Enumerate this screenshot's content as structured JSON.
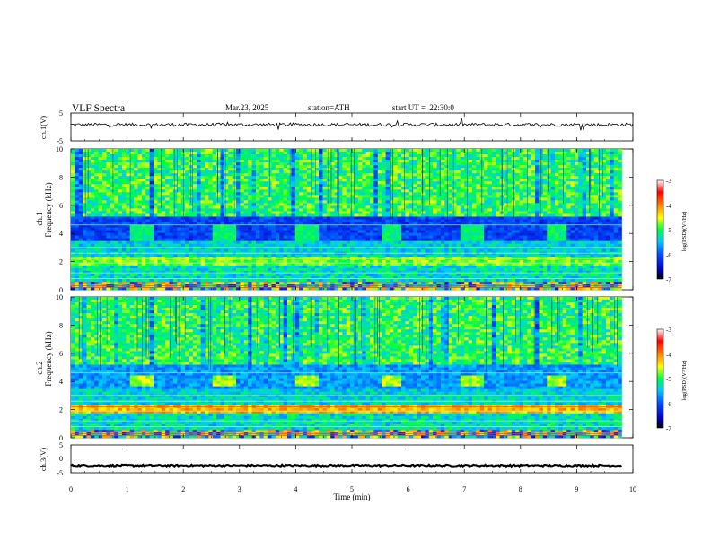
{
  "header": {
    "title": "VLF Spectra",
    "date": "Mar.23, 2025",
    "station": "station=ATH",
    "start": "start UT =  22:30:0"
  },
  "chart_data": [
    {
      "type": "line",
      "panel": "ch1-waveform",
      "ylabel": "ch.1(V)",
      "ylim": [
        -5,
        5
      ],
      "y_ticks": [
        "5",
        "-5"
      ],
      "x_range": [
        0,
        10
      ],
      "mean_value": 0.8,
      "noise_amplitude": 0.6
    },
    {
      "type": "heatmap",
      "panel": "ch1-spectrogram",
      "ylabel": "ch.1\nFrequency (kHz)",
      "ylim": [
        0,
        10
      ],
      "y_ticks": [
        "0",
        "2",
        "4",
        "6",
        "8",
        "10"
      ],
      "x_range": [
        0,
        9.8
      ],
      "colorbar": {
        "label": "log(PSD)(V²/Hz)",
        "range": [
          -7,
          -3
        ],
        "ticks": [
          "-3",
          "-4",
          "-5",
          "-6",
          "-7"
        ],
        "colors": [
          "#000080",
          "#0000ff",
          "#00a0ff",
          "#00ffff",
          "#00ff40",
          "#ffff00",
          "#ff8000",
          "#ff0000",
          "#ffffff"
        ]
      },
      "transmitter_bursts": [
        {
          "start": 1.05,
          "end": 1.45,
          "freq_low": 3.5,
          "freq_high": 4.6
        },
        {
          "start": 2.55,
          "end": 2.95,
          "freq_low": 3.5,
          "freq_high": 4.6
        },
        {
          "start": 4.0,
          "end": 4.4,
          "freq_low": 3.5,
          "freq_high": 4.6
        },
        {
          "start": 5.5,
          "end": 5.9,
          "freq_low": 3.5,
          "freq_high": 4.6
        },
        {
          "start": 6.95,
          "end": 7.35,
          "freq_low": 3.5,
          "freq_high": 4.6
        },
        {
          "start": 8.45,
          "end": 8.85,
          "freq_low": 3.5,
          "freq_high": 4.6
        }
      ]
    },
    {
      "type": "heatmap",
      "panel": "ch2-spectrogram",
      "ylabel": "ch.2\nFrequency (kHz)",
      "ylim": [
        0,
        10
      ],
      "y_ticks": [
        "0",
        "2",
        "4",
        "6",
        "8",
        "10"
      ],
      "x_range": [
        0,
        9.8
      ],
      "colorbar": {
        "label": "log(PSD)(V²/Hz)",
        "range": [
          -7,
          -3
        ],
        "ticks": [
          "-3",
          "-4",
          "-5",
          "-6",
          "-7"
        ],
        "colors": [
          "#000080",
          "#0000ff",
          "#00a0ff",
          "#00ffff",
          "#00ff40",
          "#ffff00",
          "#ff8000",
          "#ff0000",
          "#ffffff"
        ]
      },
      "transmitter_bursts": [
        {
          "start": 1.05,
          "end": 1.45,
          "freq_low": 3.6,
          "freq_high": 4.5
        },
        {
          "start": 2.55,
          "end": 2.95,
          "freq_low": 3.6,
          "freq_high": 4.5
        },
        {
          "start": 4.0,
          "end": 4.4,
          "freq_low": 3.6,
          "freq_high": 4.5
        },
        {
          "start": 5.5,
          "end": 5.9,
          "freq_low": 3.6,
          "freq_high": 4.5
        },
        {
          "start": 6.95,
          "end": 7.35,
          "freq_low": 3.6,
          "freq_high": 4.5
        },
        {
          "start": 8.45,
          "end": 8.85,
          "freq_low": 3.6,
          "freq_high": 4.5
        }
      ]
    },
    {
      "type": "line",
      "panel": "ch3-waveform",
      "ylabel": "ch.3(V)",
      "ylim": [
        -5,
        5
      ],
      "y_ticks": [
        "5",
        "0",
        "-5"
      ],
      "x_range": [
        0,
        9.8
      ],
      "mean_value": -2.5,
      "noise_amplitude": 0.3
    }
  ],
  "x_axis": {
    "label": "Time (min)",
    "range": [
      0,
      10
    ],
    "ticks": [
      "0",
      "1",
      "2",
      "3",
      "4",
      "5",
      "6",
      "7",
      "8",
      "9",
      "10"
    ]
  }
}
